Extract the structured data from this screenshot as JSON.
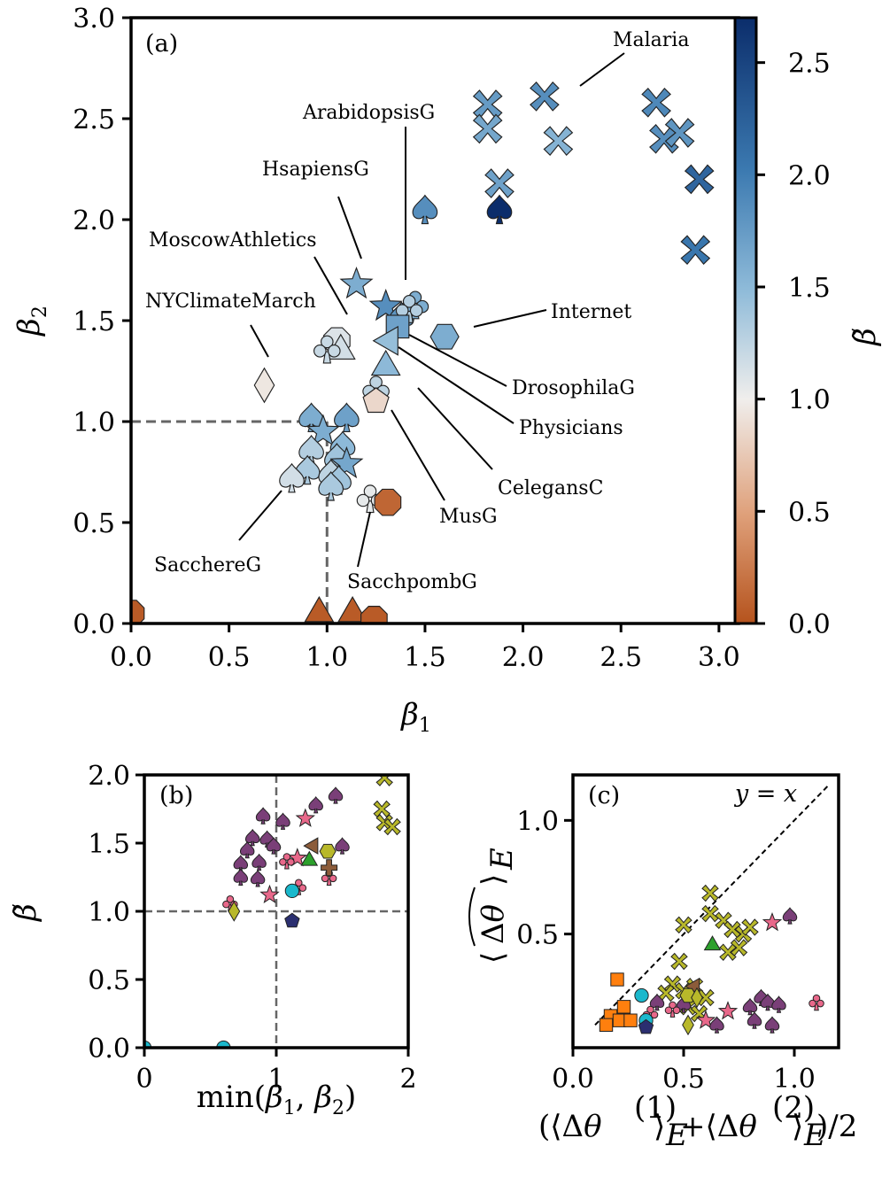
{
  "colors": {
    "cmap_low": "#b5531d",
    "cmap_mid": "#f0eeec",
    "cmap_high": "#0b2d6b",
    "ref_line": "#666666",
    "purple": "#7a3f78",
    "pink": "#e8688a",
    "olive": "#b8b82a",
    "orange": "#ff7f0e",
    "cyan": "#1ab8cc",
    "green": "#2ca02c",
    "brown": "#8c5c3a",
    "navy": "#2b2f70"
  },
  "chart_data": [
    {
      "panel": "(a)",
      "type": "scatter",
      "xlabel_sym": "β",
      "xlabel_sub": "1",
      "ylabel_sym": "β",
      "ylabel_sub": "2",
      "xlim": [
        0,
        3.1
      ],
      "ylim": [
        0,
        3.0
      ],
      "xticks": [
        "0.0",
        "0.5",
        "1.0",
        "1.5",
        "2.0",
        "2.5",
        "3.0"
      ],
      "yticks": [
        "0.0",
        "0.5",
        "1.0",
        "1.5",
        "2.0",
        "2.5",
        "3.0"
      ],
      "colorbar": {
        "label": "β̃",
        "range": [
          0,
          2.7
        ],
        "ticks": [
          "0.0",
          "0.5",
          "1.0",
          "1.5",
          "2.0",
          "2.5"
        ]
      },
      "points": [
        {
          "x": 1.82,
          "y": 2.57,
          "c": 1.75,
          "m": "cross"
        },
        {
          "x": 1.82,
          "y": 2.45,
          "c": 1.65,
          "m": "cross"
        },
        {
          "x": 2.11,
          "y": 2.61,
          "c": 1.85,
          "m": "cross"
        },
        {
          "x": 2.18,
          "y": 2.39,
          "c": 1.55,
          "m": "cross"
        },
        {
          "x": 1.88,
          "y": 2.18,
          "c": 1.7,
          "m": "cross"
        },
        {
          "x": 2.68,
          "y": 2.58,
          "c": 1.9,
          "m": "cross"
        },
        {
          "x": 2.72,
          "y": 2.4,
          "c": 1.85,
          "m": "cross"
        },
        {
          "x": 2.8,
          "y": 2.43,
          "c": 1.8,
          "m": "cross"
        },
        {
          "x": 2.9,
          "y": 2.2,
          "c": 2.2,
          "m": "cross"
        },
        {
          "x": 2.88,
          "y": 1.85,
          "c": 2.05,
          "m": "cross"
        },
        {
          "x": 1.5,
          "y": 2.05,
          "c": 1.85,
          "m": "spade"
        },
        {
          "x": 1.88,
          "y": 2.05,
          "c": 2.7,
          "m": "spade"
        },
        {
          "x": 1.15,
          "y": 1.68,
          "c": 1.6,
          "m": "star"
        },
        {
          "x": 1.3,
          "y": 1.57,
          "c": 1.85,
          "m": "star"
        },
        {
          "x": 1.38,
          "y": 1.52,
          "c": 1.8,
          "m": "spade"
        },
        {
          "x": 1.45,
          "y": 1.58,
          "c": 1.6,
          "m": "club"
        },
        {
          "x": 1.42,
          "y": 1.56,
          "c": 1.3,
          "m": "club"
        },
        {
          "x": 1.36,
          "y": 1.47,
          "c": 1.7,
          "m": "square"
        },
        {
          "x": 1.6,
          "y": 1.42,
          "c": 1.6,
          "m": "hexagon"
        },
        {
          "x": 1.32,
          "y": 1.4,
          "c": 1.45,
          "m": "triangle_left"
        },
        {
          "x": 1.05,
          "y": 1.4,
          "c": 1.1,
          "m": "octagon"
        },
        {
          "x": 1.07,
          "y": 1.35,
          "c": 1.15,
          "m": "triangle"
        },
        {
          "x": 1.0,
          "y": 1.36,
          "c": 1.2,
          "m": "club"
        },
        {
          "x": 1.3,
          "y": 1.27,
          "c": 1.5,
          "m": "triangle"
        },
        {
          "x": 1.25,
          "y": 1.16,
          "c": 1.25,
          "m": "club"
        },
        {
          "x": 1.25,
          "y": 1.1,
          "c": 0.85,
          "m": "pentagon"
        },
        {
          "x": 0.68,
          "y": 1.18,
          "c": 0.95,
          "m": "diamond"
        },
        {
          "x": 0.92,
          "y": 1.02,
          "c": 1.6,
          "m": "spade"
        },
        {
          "x": 1.1,
          "y": 1.02,
          "c": 1.7,
          "m": "spade"
        },
        {
          "x": 0.98,
          "y": 0.95,
          "c": 1.6,
          "m": "star"
        },
        {
          "x": 1.08,
          "y": 0.88,
          "c": 1.5,
          "m": "spade"
        },
        {
          "x": 0.92,
          "y": 0.86,
          "c": 1.3,
          "m": "spade"
        },
        {
          "x": 1.05,
          "y": 0.82,
          "c": 1.4,
          "m": "spade"
        },
        {
          "x": 1.1,
          "y": 0.79,
          "c": 1.65,
          "m": "star"
        },
        {
          "x": 0.9,
          "y": 0.76,
          "c": 1.35,
          "m": "spade"
        },
        {
          "x": 1.02,
          "y": 0.74,
          "c": 1.25,
          "m": "spade"
        },
        {
          "x": 0.82,
          "y": 0.72,
          "c": 1.15,
          "m": "spade"
        },
        {
          "x": 1.06,
          "y": 0.71,
          "c": 1.4,
          "m": "spade"
        },
        {
          "x": 1.02,
          "y": 0.68,
          "c": 1.35,
          "m": "spade"
        },
        {
          "x": 1.22,
          "y": 0.62,
          "c": 1.05,
          "m": "club"
        },
        {
          "x": 1.31,
          "y": 0.6,
          "c": 0.12,
          "m": "octagon"
        },
        {
          "x": 0.0,
          "y": 0.05,
          "c": 0.05,
          "m": "octagon"
        },
        {
          "x": 0.96,
          "y": 0.05,
          "c": 0.05,
          "m": "triangle"
        },
        {
          "x": 1.13,
          "y": 0.05,
          "c": 0.05,
          "m": "triangle"
        },
        {
          "x": 1.24,
          "y": 0.02,
          "c": 0.05,
          "m": "octagon"
        }
      ],
      "annotations": [
        {
          "text": "Malaria",
          "x": 2.18,
          "y": 2.76
        },
        {
          "text": "ArabidopsisG",
          "x": 1.36,
          "y": 2.53
        },
        {
          "text": "HsapiensG",
          "x": 0.98,
          "y": 2.25
        },
        {
          "text": "MoscowAthletics",
          "x": 0.93,
          "y": 1.92
        },
        {
          "text": "NYClimateMarch",
          "x": 0.52,
          "y": 1.65
        },
        {
          "text": "Internet",
          "x": 2.1,
          "y": 1.55
        },
        {
          "text": "DrosophilaG",
          "x": 1.95,
          "y": 1.15
        },
        {
          "text": "Physicians",
          "x": 1.98,
          "y": 0.97
        },
        {
          "text": "CelegansC",
          "x": 1.85,
          "y": 0.67
        },
        {
          "text": "MusG",
          "x": 1.56,
          "y": 0.52
        },
        {
          "text": "SacchereG",
          "x": 0.38,
          "y": 0.28
        },
        {
          "text": "SacchpombG",
          "x": 1.25,
          "y": 0.18
        }
      ]
    },
    {
      "panel": "(b)",
      "type": "scatter",
      "xlabel_pre": "min(",
      "xlabel_b1": "β",
      "xlabel_s1": "1",
      "xlabel_mid": ", ",
      "xlabel_b2": "β",
      "xlabel_s2": "2",
      "xlabel_post": ")",
      "ylabel": "β̃",
      "xlim": [
        0,
        2
      ],
      "ylim": [
        0,
        2
      ],
      "xticks": [
        "0",
        "1",
        "2"
      ],
      "yticks": [
        "0.0",
        "0.5",
        "1.0",
        "1.5",
        "2.0"
      ],
      "points": [
        {
          "x": 0.9,
          "y": 1.7,
          "col": "purple",
          "m": "spade"
        },
        {
          "x": 1.05,
          "y": 1.66,
          "col": "purple",
          "m": "spade"
        },
        {
          "x": 1.3,
          "y": 1.78,
          "col": "purple",
          "m": "spade"
        },
        {
          "x": 1.45,
          "y": 1.85,
          "col": "purple",
          "m": "spade"
        },
        {
          "x": 0.82,
          "y": 1.54,
          "col": "purple",
          "m": "spade"
        },
        {
          "x": 0.93,
          "y": 1.53,
          "col": "purple",
          "m": "spade"
        },
        {
          "x": 0.78,
          "y": 1.45,
          "col": "purple",
          "m": "spade"
        },
        {
          "x": 0.98,
          "y": 1.48,
          "col": "purple",
          "m": "spade"
        },
        {
          "x": 0.87,
          "y": 1.36,
          "col": "purple",
          "m": "spade"
        },
        {
          "x": 0.73,
          "y": 1.35,
          "col": "purple",
          "m": "spade"
        },
        {
          "x": 0.73,
          "y": 1.25,
          "col": "purple",
          "m": "spade"
        },
        {
          "x": 0.86,
          "y": 1.24,
          "col": "purple",
          "m": "spade"
        },
        {
          "x": 1.5,
          "y": 1.48,
          "col": "purple",
          "m": "spade"
        },
        {
          "x": 1.22,
          "y": 1.68,
          "col": "pink",
          "m": "star"
        },
        {
          "x": 0.95,
          "y": 1.12,
          "col": "pink",
          "m": "star"
        },
        {
          "x": 1.16,
          "y": 1.39,
          "col": "pink",
          "m": "star"
        },
        {
          "x": 1.08,
          "y": 1.37,
          "col": "pink",
          "m": "club"
        },
        {
          "x": 1.17,
          "y": 1.18,
          "col": "pink",
          "m": "club"
        },
        {
          "x": 1.4,
          "y": 1.25,
          "col": "pink",
          "m": "club"
        },
        {
          "x": 0.65,
          "y": 1.06,
          "col": "pink",
          "m": "club"
        },
        {
          "x": 1.82,
          "y": 1.98,
          "col": "olive",
          "m": "cross"
        },
        {
          "x": 1.8,
          "y": 1.75,
          "col": "olive",
          "m": "cross"
        },
        {
          "x": 1.82,
          "y": 1.65,
          "col": "olive",
          "m": "cross"
        },
        {
          "x": 1.88,
          "y": 1.62,
          "col": "olive",
          "m": "cross"
        },
        {
          "x": 1.28,
          "y": 1.48,
          "col": "brown",
          "m": "triangle_left"
        },
        {
          "x": 1.39,
          "y": 1.44,
          "col": "olive",
          "m": "hexagon"
        },
        {
          "x": 1.4,
          "y": 1.32,
          "col": "brown",
          "m": "plus"
        },
        {
          "x": 1.25,
          "y": 1.37,
          "col": "green",
          "m": "triangle"
        },
        {
          "x": 1.12,
          "y": 1.15,
          "col": "cyan",
          "m": "circle"
        },
        {
          "x": 0.68,
          "y": 1.0,
          "col": "olive",
          "m": "diamond"
        },
        {
          "x": 1.12,
          "y": 0.93,
          "col": "navy",
          "m": "pentagon"
        },
        {
          "x": 0.6,
          "y": 0.0,
          "col": "cyan",
          "m": "circle"
        },
        {
          "x": 0.0,
          "y": 0.0,
          "col": "cyan",
          "m": "circle"
        }
      ]
    },
    {
      "panel": "(c)",
      "type": "scatter",
      "ref_line_label": "y = x",
      "xlim": [
        0,
        1.2
      ],
      "ylim": [
        0,
        1.2
      ],
      "xticks": [
        "0.0",
        "0.5",
        "1.0"
      ],
      "yticks": [
        "0.5",
        "1.0"
      ],
      "points": [
        {
          "x": 0.62,
          "y": 0.68,
          "col": "olive",
          "m": "cross"
        },
        {
          "x": 0.62,
          "y": 0.59,
          "col": "olive",
          "m": "cross"
        },
        {
          "x": 0.68,
          "y": 0.56,
          "col": "olive",
          "m": "cross"
        },
        {
          "x": 0.72,
          "y": 0.52,
          "col": "olive",
          "m": "cross"
        },
        {
          "x": 0.77,
          "y": 0.5,
          "col": "olive",
          "m": "cross"
        },
        {
          "x": 0.8,
          "y": 0.53,
          "col": "olive",
          "m": "cross"
        },
        {
          "x": 0.5,
          "y": 0.54,
          "col": "olive",
          "m": "cross"
        },
        {
          "x": 0.7,
          "y": 0.42,
          "col": "olive",
          "m": "cross"
        },
        {
          "x": 0.75,
          "y": 0.44,
          "col": "olive",
          "m": "cross"
        },
        {
          "x": 0.48,
          "y": 0.38,
          "col": "olive",
          "m": "cross"
        },
        {
          "x": 0.45,
          "y": 0.28,
          "col": "olive",
          "m": "cross"
        },
        {
          "x": 0.5,
          "y": 0.25,
          "col": "olive",
          "m": "cross"
        },
        {
          "x": 0.55,
          "y": 0.27,
          "col": "olive",
          "m": "cross"
        },
        {
          "x": 0.6,
          "y": 0.22,
          "col": "olive",
          "m": "cross"
        },
        {
          "x": 0.52,
          "y": 0.18,
          "col": "olive",
          "m": "cross"
        },
        {
          "x": 0.57,
          "y": 0.15,
          "col": "olive",
          "m": "cross"
        },
        {
          "x": 0.42,
          "y": 0.24,
          "col": "olive",
          "m": "cross"
        },
        {
          "x": 0.63,
          "y": 0.45,
          "col": "green",
          "m": "triangle"
        },
        {
          "x": 0.9,
          "y": 0.55,
          "col": "pink",
          "m": "star"
        },
        {
          "x": 0.7,
          "y": 0.16,
          "col": "pink",
          "m": "star"
        },
        {
          "x": 0.6,
          "y": 0.12,
          "col": "pink",
          "m": "star"
        },
        {
          "x": 0.98,
          "y": 0.58,
          "col": "purple",
          "m": "spade"
        },
        {
          "x": 0.85,
          "y": 0.22,
          "col": "purple",
          "m": "spade"
        },
        {
          "x": 0.88,
          "y": 0.2,
          "col": "purple",
          "m": "spade"
        },
        {
          "x": 0.8,
          "y": 0.18,
          "col": "purple",
          "m": "spade"
        },
        {
          "x": 0.93,
          "y": 0.19,
          "col": "purple",
          "m": "spade"
        },
        {
          "x": 0.82,
          "y": 0.12,
          "col": "purple",
          "m": "spade"
        },
        {
          "x": 0.9,
          "y": 0.1,
          "col": "purple",
          "m": "spade"
        },
        {
          "x": 0.65,
          "y": 0.1,
          "col": "purple",
          "m": "spade"
        },
        {
          "x": 0.5,
          "y": 0.19,
          "col": "purple",
          "m": "spade"
        },
        {
          "x": 0.38,
          "y": 0.2,
          "col": "purple",
          "m": "spade"
        },
        {
          "x": 1.1,
          "y": 0.2,
          "col": "pink",
          "m": "club"
        },
        {
          "x": 0.45,
          "y": 0.17,
          "col": "pink",
          "m": "club"
        },
        {
          "x": 0.35,
          "y": 0.15,
          "col": "pink",
          "m": "club"
        },
        {
          "x": 0.2,
          "y": 0.3,
          "col": "orange",
          "m": "square"
        },
        {
          "x": 0.17,
          "y": 0.14,
          "col": "orange",
          "m": "square"
        },
        {
          "x": 0.23,
          "y": 0.18,
          "col": "orange",
          "m": "square"
        },
        {
          "x": 0.15,
          "y": 0.1,
          "col": "orange",
          "m": "square"
        },
        {
          "x": 0.21,
          "y": 0.12,
          "col": "orange",
          "m": "square"
        },
        {
          "x": 0.26,
          "y": 0.12,
          "col": "orange",
          "m": "square"
        },
        {
          "x": 0.31,
          "y": 0.23,
          "col": "cyan",
          "m": "circle"
        },
        {
          "x": 0.33,
          "y": 0.12,
          "col": "cyan",
          "m": "circle"
        },
        {
          "x": 0.33,
          "y": 0.09,
          "col": "navy",
          "m": "pentagon"
        },
        {
          "x": 0.55,
          "y": 0.27,
          "col": "brown",
          "m": "triangle_left"
        },
        {
          "x": 0.52,
          "y": 0.23,
          "col": "olive",
          "m": "hexagon"
        },
        {
          "x": 0.52,
          "y": 0.1,
          "col": "olive",
          "m": "diamond"
        },
        {
          "x": 0.56,
          "y": 0.22,
          "col": "olive",
          "m": "diamond"
        }
      ]
    }
  ]
}
